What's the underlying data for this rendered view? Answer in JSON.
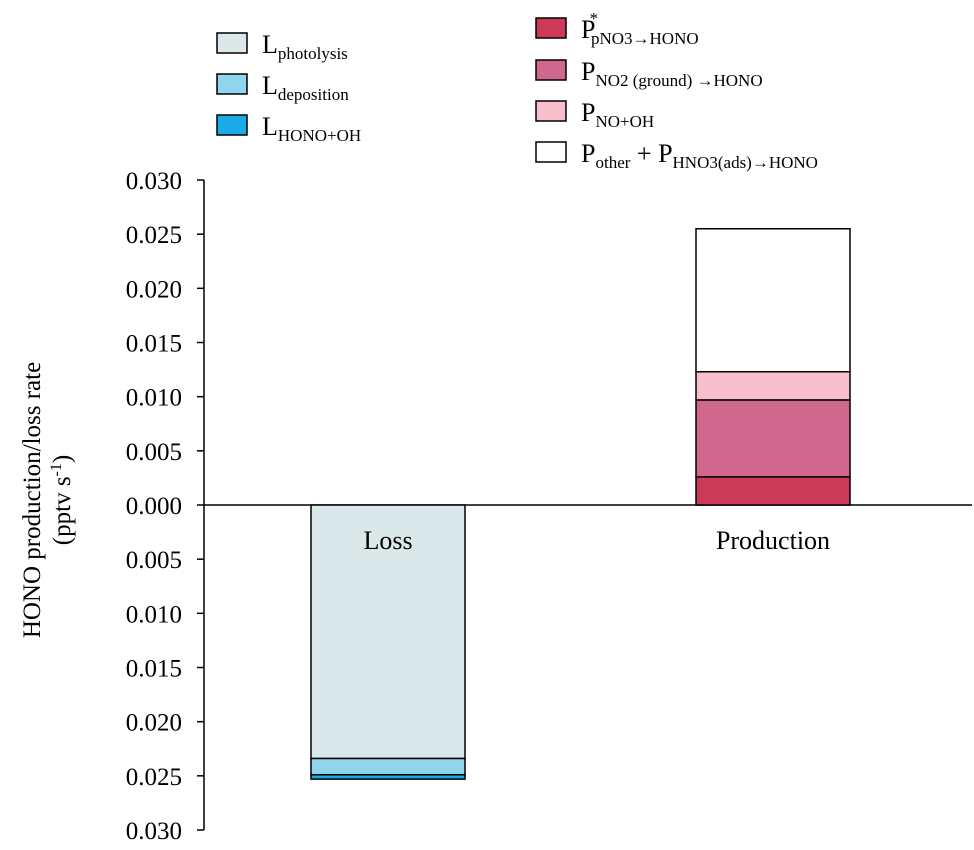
{
  "chart_data": {
    "type": "bar",
    "stacked": true,
    "ylabel_line1": "HONO production/loss rate",
    "ylabel_line2_prefix": "(pptv s",
    "ylabel_line2_exp": "-1",
    "ylabel_line2_suffix": ")",
    "ylim": [
      -0.03,
      0.03
    ],
    "yticks": [
      0.03,
      0.025,
      0.02,
      0.015,
      0.01,
      0.005,
      0.0,
      -0.005,
      -0.01,
      -0.015,
      -0.02,
      -0.025,
      -0.03
    ],
    "ytick_labels": [
      "0.030",
      "0.025",
      "0.020",
      "0.015",
      "0.010",
      "0.005",
      "0.000",
      "0.005",
      "0.010",
      "0.015",
      "0.020",
      "0.025",
      "0.030"
    ],
    "categories": [
      "Loss",
      "Production"
    ],
    "grid": false,
    "legend_placement": "top",
    "series": [
      {
        "key": "photolysis",
        "group": "loss",
        "category": "Loss",
        "value": -0.0234,
        "color": "#dbe8ea",
        "legend": {
          "main": "L",
          "sub": "photolysis"
        }
      },
      {
        "key": "deposition",
        "group": "loss",
        "category": "Loss",
        "value": -0.0015,
        "color": "#8fd6ec",
        "legend": {
          "main": "L",
          "sub": "deposition"
        }
      },
      {
        "key": "hono_oh",
        "group": "loss",
        "category": "Loss",
        "value": -0.0004,
        "color": "#1aabe6",
        "legend": {
          "main": "L",
          "sub": "HONO+OH"
        }
      },
      {
        "key": "pno3",
        "group": "production",
        "category": "Production",
        "value": 0.0026,
        "color": "#cb3b59",
        "legend": {
          "main": "P",
          "sup": "*",
          "sub": "pNO3→HONO"
        }
      },
      {
        "key": "no2_ground",
        "group": "production",
        "category": "Production",
        "value": 0.0071,
        "color": "#d0678d",
        "legend": {
          "main": "P",
          "sub": "NO2 (ground) →HONO"
        }
      },
      {
        "key": "no_oh",
        "group": "production",
        "category": "Production",
        "value": 0.0026,
        "color": "#f6bfcb",
        "legend": {
          "main": "P",
          "sub": "NO+OH"
        }
      },
      {
        "key": "other",
        "group": "production",
        "category": "Production",
        "value": 0.0132,
        "color": "#ffffff",
        "legend": {
          "main": "P",
          "sub": "other",
          "mid": " + P",
          "sub2": "HNO3(ads)→HONO"
        }
      }
    ]
  }
}
